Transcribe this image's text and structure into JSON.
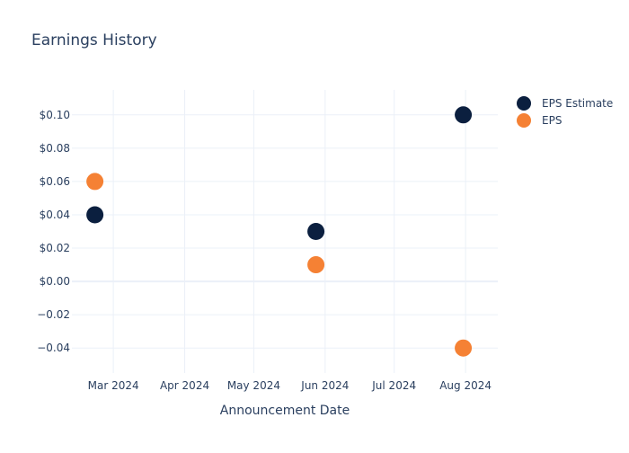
{
  "chart_data": {
    "type": "scatter",
    "title": "Earnings History",
    "xlabel": "Announcement Date",
    "ylabel": "",
    "x_tick_labels": [
      "Mar 2024",
      "Apr 2024",
      "May 2024",
      "Jun 2024",
      "Jul 2024",
      "Aug 2024"
    ],
    "x_ticks": [
      "2024-03-01",
      "2024-04-01",
      "2024-05-01",
      "2024-06-01",
      "2024-07-01",
      "2024-08-01"
    ],
    "xlim": [
      "2024-02-12",
      "2024-08-15"
    ],
    "y_ticks": [
      0.1,
      0.08,
      0.06,
      0.04,
      0.02,
      0.0,
      -0.02,
      -0.04
    ],
    "y_tick_labels": [
      "$0.10",
      "$0.08",
      "$0.06",
      "$0.04",
      "$0.02",
      "$0.00",
      "−0.02",
      "−0.04"
    ],
    "ylim": [
      -0.055,
      0.115
    ],
    "grid": true,
    "legend_position": "top-right",
    "series": [
      {
        "name": "EPS Estimate",
        "color": "#0b1f3f",
        "points": [
          {
            "x": "2024-02-22",
            "y": 0.04
          },
          {
            "x": "2024-05-28",
            "y": 0.03
          },
          {
            "x": "2024-07-31",
            "y": 0.1
          }
        ]
      },
      {
        "name": "EPS",
        "color": "#f58134",
        "points": [
          {
            "x": "2024-02-22",
            "y": 0.06
          },
          {
            "x": "2024-05-28",
            "y": 0.01
          },
          {
            "x": "2024-07-31",
            "y": -0.04
          }
        ]
      }
    ]
  }
}
